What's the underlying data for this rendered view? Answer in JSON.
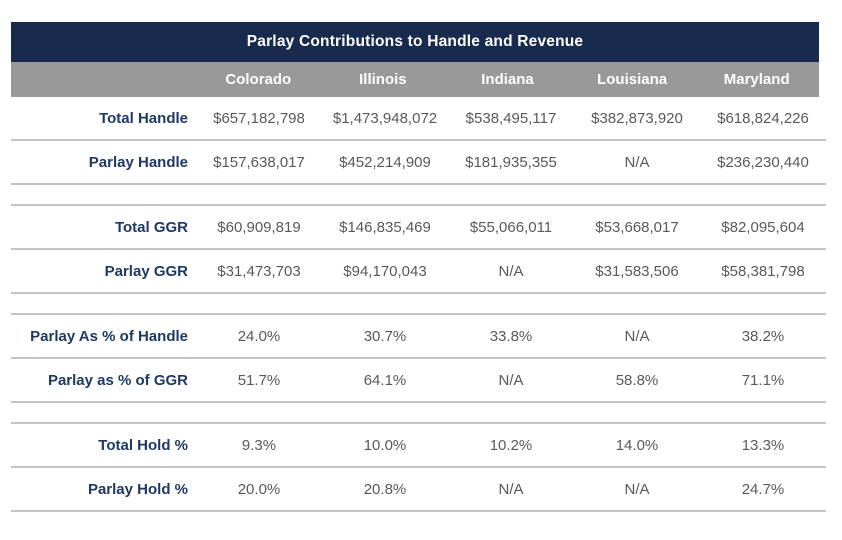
{
  "chart_data": {
    "type": "table",
    "title": "Parlay Contributions to Handle and Revenue",
    "columns": [
      "Colorado",
      "Illinois",
      "Indiana",
      "Louisiana",
      "Maryland"
    ],
    "row_groups": [
      {
        "rows": [
          {
            "label": "Total Handle",
            "values": [
              "$657,182,798",
              "$1,473,948,072",
              "$538,495,117",
              "$382,873,920",
              "$618,824,226"
            ]
          },
          {
            "label": "Parlay Handle",
            "values": [
              "$157,638,017",
              "$452,214,909",
              "$181,935,355",
              "N/A",
              "$236,230,440"
            ]
          }
        ]
      },
      {
        "rows": [
          {
            "label": "Total GGR",
            "values": [
              "$60,909,819",
              "$146,835,469",
              "$55,066,011",
              "$53,668,017",
              "$82,095,604"
            ]
          },
          {
            "label": "Parlay GGR",
            "values": [
              "$31,473,703",
              "$94,170,043",
              "N/A",
              "$31,583,506",
              "$58,381,798"
            ]
          }
        ]
      },
      {
        "rows": [
          {
            "label": "Parlay As % of Handle",
            "values": [
              "24.0%",
              "30.7%",
              "33.8%",
              "N/A",
              "38.2%"
            ]
          },
          {
            "label": "Parlay as % of GGR",
            "values": [
              "51.7%",
              "64.1%",
              "N/A",
              "58.8%",
              "71.1%"
            ]
          }
        ]
      },
      {
        "rows": [
          {
            "label": "Total Hold %",
            "values": [
              "9.3%",
              "10.0%",
              "10.2%",
              "14.0%",
              "13.3%"
            ]
          },
          {
            "label": "Parlay Hold %",
            "values": [
              "20.0%",
              "20.8%",
              "N/A",
              "N/A",
              "24.7%"
            ]
          }
        ]
      }
    ],
    "layout": {
      "grid": "horizontal-dividers-only",
      "legend": "none"
    }
  },
  "colors": {
    "title_bg": "#182a4d",
    "title_text": "#ffffff",
    "header_bg": "#999999",
    "header_text": "#ffffff",
    "label_text": "#1f3864",
    "value_text": "#595959",
    "divider": "#c3c3c3"
  }
}
